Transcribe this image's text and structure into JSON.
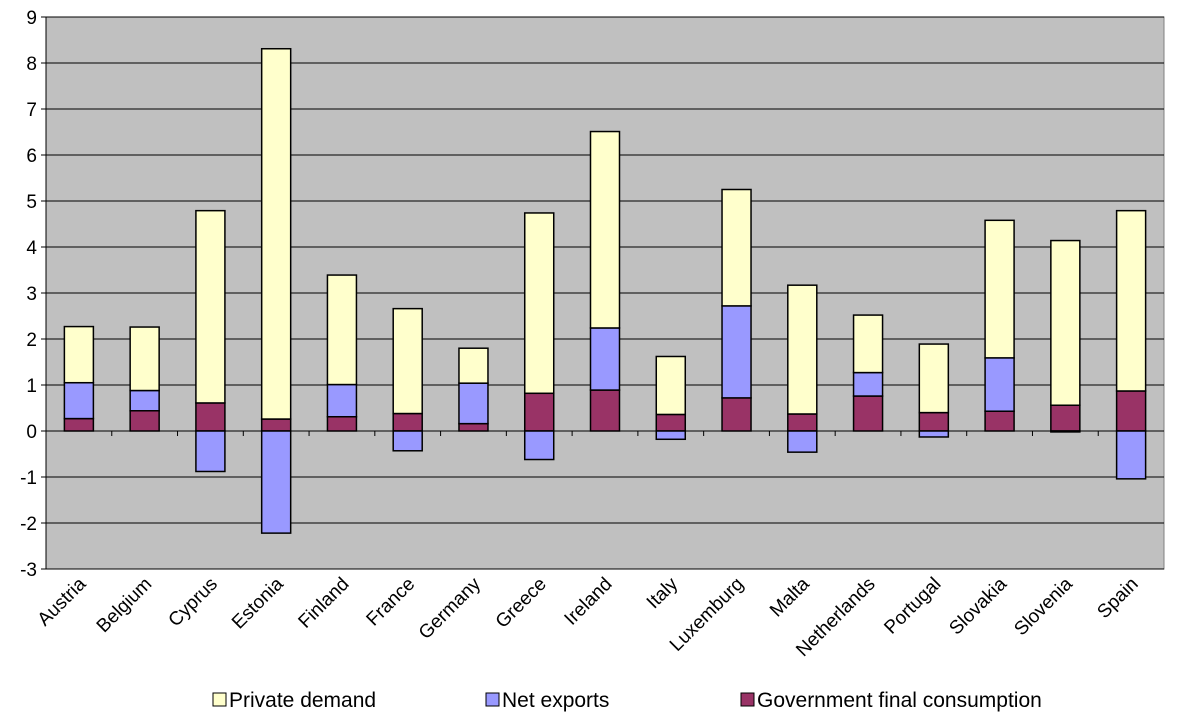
{
  "chart_data": {
    "type": "bar",
    "stacked": true,
    "title": "",
    "xlabel": "",
    "ylabel": "",
    "ylim": [
      -3,
      9
    ],
    "y_ticks": [
      "-3",
      "-2",
      "-1",
      "0",
      "1",
      "2",
      "3",
      "4",
      "5",
      "6",
      "7",
      "8",
      "9"
    ],
    "grid": true,
    "legend_position": "bottom",
    "categories": [
      "Austria",
      "Belgium",
      "Cyprus",
      "Estonia",
      "Finland",
      "France",
      "Germany",
      "Greece",
      "Ireland",
      "Italy",
      "Luxemburg",
      "Malta",
      "Netherlands",
      "Portugal",
      "Slovakia",
      "Slovenia",
      "Spain"
    ],
    "series": [
      {
        "name": "Private demand",
        "color": "#ffffcc",
        "values": [
          1.22,
          1.38,
          4.18,
          8.05,
          2.38,
          2.28,
          0.76,
          3.92,
          4.27,
          1.26,
          2.53,
          2.8,
          1.25,
          1.49,
          2.99,
          3.58,
          3.92
        ]
      },
      {
        "name": "Net exports",
        "color": "#9999ff",
        "values": [
          0.78,
          0.44,
          -0.88,
          -2.22,
          0.7,
          -0.43,
          0.88,
          -0.62,
          1.35,
          -0.18,
          2.0,
          -0.46,
          0.51,
          -0.13,
          1.16,
          -0.02,
          -1.04
        ]
      },
      {
        "name": "Government final consumption",
        "color": "#993366",
        "values": [
          0.27,
          0.44,
          0.61,
          0.26,
          0.31,
          0.38,
          0.16,
          0.82,
          0.89,
          0.36,
          0.72,
          0.37,
          0.76,
          0.4,
          0.43,
          0.56,
          0.87
        ]
      }
    ]
  }
}
